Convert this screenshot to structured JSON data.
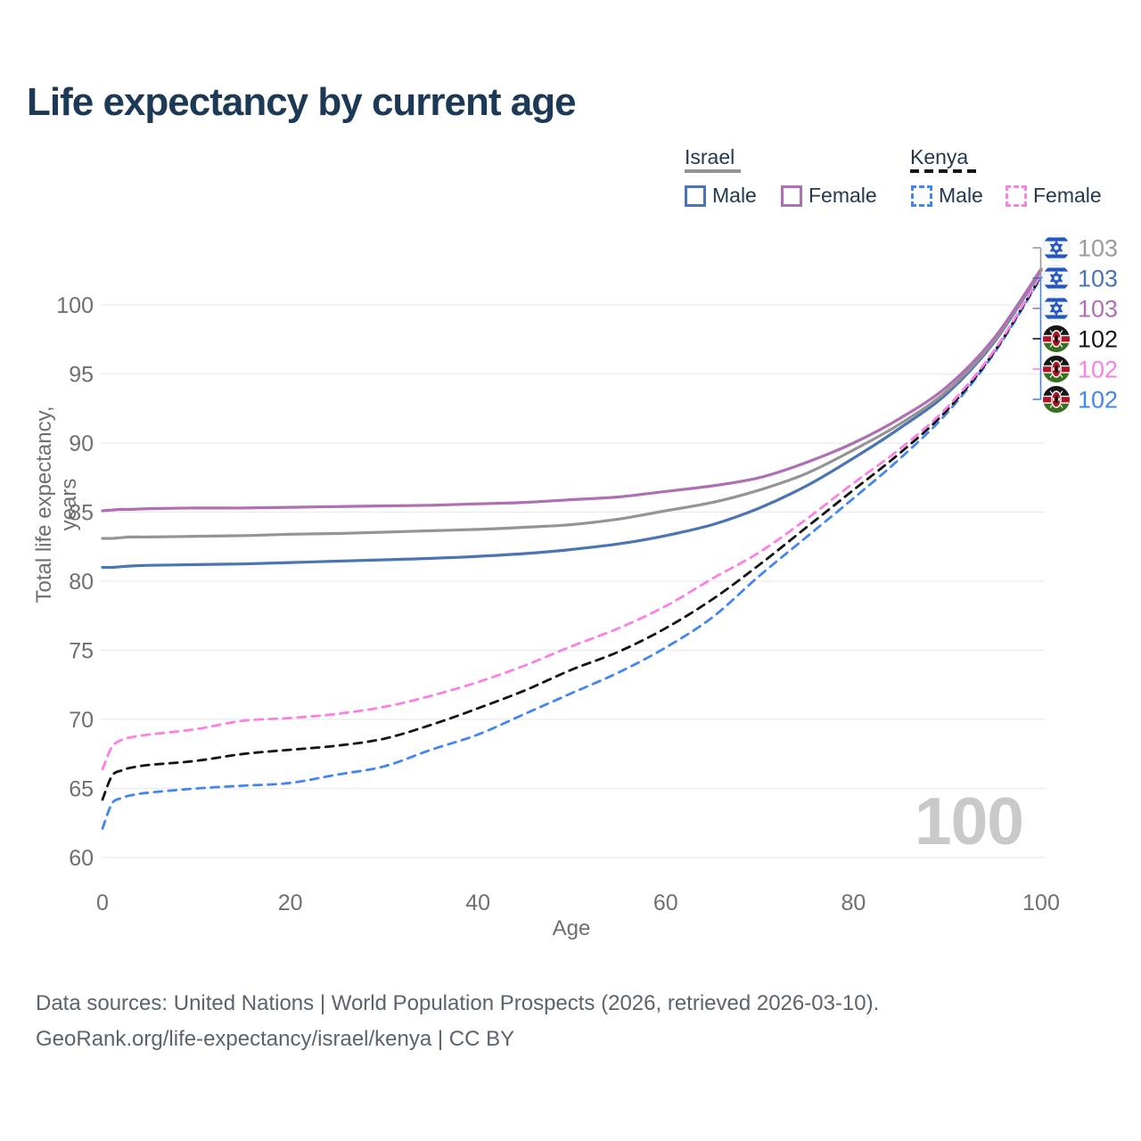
{
  "title": "Life expectancy by current age",
  "watermark": "100",
  "legend": {
    "groups": [
      {
        "label": "Israel",
        "underline_style": "solid",
        "underline_color": "#949494",
        "items": [
          {
            "label": "Male",
            "color": "#4a74b4",
            "dashed": false
          },
          {
            "label": "Female",
            "color": "#b06eb4",
            "dashed": false
          }
        ]
      },
      {
        "label": "Kenya",
        "underline_style": "dashed",
        "underline_color": "#141414",
        "items": [
          {
            "label": "Male",
            "color": "#4285f4",
            "dashed": true
          },
          {
            "label": "Female",
            "color": "#fb80e3",
            "dashed": true
          }
        ]
      }
    ]
  },
  "chart_data": {
    "type": "line",
    "title": "Life expectancy by current age",
    "xlabel": "Age",
    "ylabel": "Total life expectancy, years",
    "xlim": [
      0,
      100
    ],
    "ylim": [
      60,
      104
    ],
    "x_ticks": [
      0,
      20,
      40,
      60,
      80,
      100
    ],
    "y_ticks": [
      60,
      65,
      70,
      75,
      80,
      85,
      90,
      95,
      100
    ],
    "grid": "horizontal-only",
    "legend_position": "top-right",
    "ages": [
      0,
      1,
      2,
      3,
      5,
      10,
      15,
      20,
      25,
      30,
      35,
      40,
      45,
      50,
      55,
      60,
      65,
      70,
      75,
      80,
      85,
      90,
      95,
      100
    ],
    "series": [
      {
        "name": "Kenya male",
        "country": "Kenya",
        "sex": "male",
        "style": "dashed",
        "color": "#4285f4",
        "values": [
          62.1,
          63.9,
          64.3,
          64.5,
          64.7,
          65.0,
          65.2,
          65.4,
          66.0,
          66.6,
          67.8,
          68.9,
          70.4,
          71.9,
          73.4,
          75.2,
          77.4,
          80.4,
          83.2,
          86.0,
          88.9,
          92.2,
          96.5,
          102.0
        ]
      },
      {
        "name": "Kenya both sexes",
        "country": "Kenya",
        "sex": "both",
        "style": "dashed",
        "color": "#141414",
        "values": [
          64.2,
          65.9,
          66.3,
          66.5,
          66.7,
          67.0,
          67.5,
          67.8,
          68.1,
          68.6,
          69.6,
          70.8,
          72.1,
          73.6,
          74.9,
          76.6,
          78.7,
          81.2,
          83.9,
          86.6,
          89.3,
          92.4,
          96.6,
          102.1
        ]
      },
      {
        "name": "Kenya female",
        "country": "Kenya",
        "sex": "female",
        "style": "dashed",
        "color": "#fb80e3",
        "values": [
          66.4,
          68.0,
          68.5,
          68.7,
          68.9,
          69.3,
          69.9,
          70.1,
          70.4,
          70.9,
          71.7,
          72.7,
          73.9,
          75.3,
          76.6,
          78.2,
          80.2,
          82.1,
          84.5,
          87.1,
          89.6,
          92.6,
          96.7,
          102.2
        ]
      },
      {
        "name": "Israel male",
        "country": "Israel",
        "sex": "male",
        "style": "solid",
        "color": "#4a74b4",
        "values": [
          81.0,
          81.0,
          81.05,
          81.1,
          81.15,
          81.2,
          81.25,
          81.35,
          81.45,
          81.55,
          81.65,
          81.8,
          82.0,
          82.3,
          82.7,
          83.3,
          84.1,
          85.3,
          86.9,
          88.9,
          91.1,
          93.6,
          97.3,
          102.5
        ]
      },
      {
        "name": "Israel both sexes",
        "country": "Israel",
        "sex": "both",
        "style": "solid",
        "color": "#949494",
        "values": [
          83.1,
          83.1,
          83.15,
          83.2,
          83.2,
          83.25,
          83.3,
          83.4,
          83.45,
          83.55,
          83.65,
          83.75,
          83.9,
          84.1,
          84.5,
          85.1,
          85.7,
          86.6,
          87.8,
          89.5,
          91.4,
          93.8,
          97.4,
          102.55
        ]
      },
      {
        "name": "Israel female",
        "country": "Israel",
        "sex": "female",
        "style": "solid",
        "color": "#b06eb4",
        "values": [
          85.1,
          85.15,
          85.2,
          85.2,
          85.25,
          85.3,
          85.3,
          85.35,
          85.4,
          85.45,
          85.5,
          85.6,
          85.7,
          85.9,
          86.1,
          86.5,
          86.9,
          87.5,
          88.6,
          90.0,
          91.8,
          94.1,
          97.6,
          102.6
        ]
      }
    ],
    "end_labels": [
      {
        "flag": "israel-flag-icon",
        "value": "103",
        "color": "#9a9a9a"
      },
      {
        "flag": "israel-flag-icon",
        "value": "103",
        "color": "#4a74b4"
      },
      {
        "flag": "israel-flag-icon",
        "value": "103",
        "color": "#b06eb4"
      },
      {
        "flag": "kenya-flag-icon",
        "value": "102",
        "color": "#141414"
      },
      {
        "flag": "kenya-flag-icon",
        "value": "102",
        "color": "#fb80e3"
      },
      {
        "flag": "kenya-flag-icon",
        "value": "102",
        "color": "#4285f4"
      }
    ]
  },
  "footer": {
    "line1": "Data sources: United Nations | World Population Prospects (2026, retrieved 2026-03-10).",
    "line2": "GeoRank.org/life-expectancy/israel/kenya | CC BY"
  }
}
